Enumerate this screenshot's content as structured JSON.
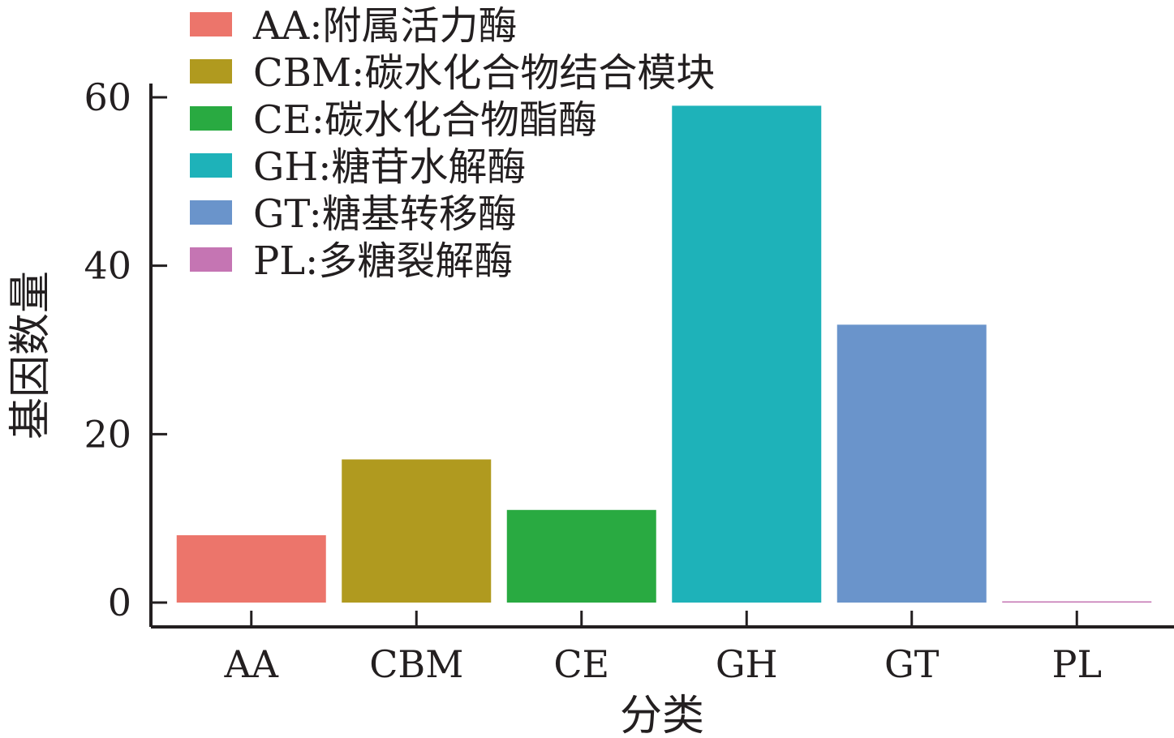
{
  "chart_data": {
    "type": "bar",
    "categories": [
      "AA",
      "CBM",
      "CE",
      "GH",
      "GT",
      "PL"
    ],
    "values": [
      8,
      17,
      11,
      59,
      33,
      0
    ],
    "colors": [
      "#ec756b",
      "#b09a1f",
      "#29aa41",
      "#1eb2b9",
      "#6a94cb",
      "#c575b3"
    ],
    "xlabel": "分类",
    "ylabel": "基因数量",
    "ylim": [
      0,
      60
    ],
    "yticks": [
      0,
      20,
      40,
      60
    ],
    "legend": {
      "position": "top-left",
      "entries": [
        "AA:附属活力酶",
        "CBM:碳水化合物结合模块",
        "CE:碳水化合物酯酶",
        "GH:糖苷水解酶",
        "GT:糖基转移酶",
        "PL:多糖裂解酶"
      ]
    },
    "grid": false
  }
}
